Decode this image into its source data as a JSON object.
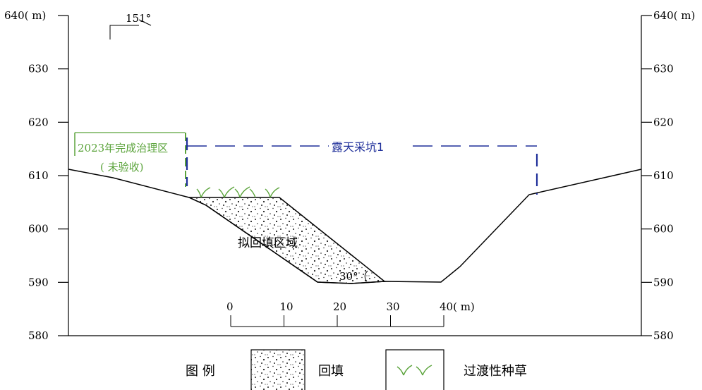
{
  "orientation_label": "151°",
  "y_axis": {
    "unit_label_left": "640( m)",
    "unit_label_right": "640( m)",
    "ticks": [
      {
        "value": 630,
        "label": "630"
      },
      {
        "value": 620,
        "label": "620"
      },
      {
        "value": 610,
        "label": "610"
      },
      {
        "value": 600,
        "label": "600"
      },
      {
        "value": 590,
        "label": "590"
      },
      {
        "value": 580,
        "label": "580"
      }
    ],
    "range": [
      580,
      640
    ]
  },
  "treated_zone": {
    "line1": "2023年完成治理区",
    "line2": "( 未验收)",
    "color": "#5aa33a"
  },
  "pit": {
    "label": "露天采坑1",
    "color": "#1f2f9a"
  },
  "backfill_area_label": "拟回填区域",
  "slope_angle_label": "30°",
  "scale_bar": {
    "labels": [
      "0",
      "10",
      "20",
      "30",
      "40( m)"
    ],
    "values": [
      0,
      10,
      20,
      30,
      40
    ]
  },
  "legend": {
    "title": "图 例",
    "items": [
      {
        "name": "backfill",
        "label": "回填"
      },
      {
        "name": "grass",
        "label": "过渡性种草"
      }
    ]
  }
}
